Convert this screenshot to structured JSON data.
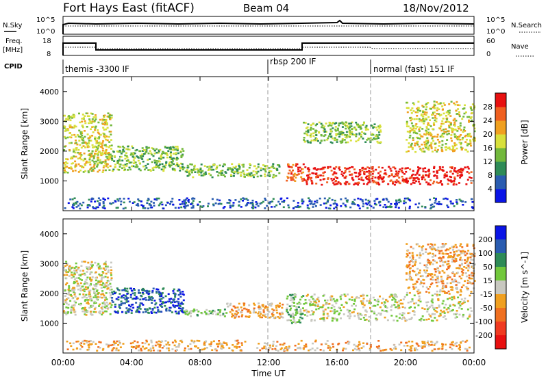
{
  "header": {
    "station": "Fort Hays East (fitACF)",
    "beam": "Beam 04",
    "date": "18/Nov/2012"
  },
  "nsky_panel": {
    "left_label": "N.Sky",
    "right_label": "N.Search",
    "left_ticks": [
      "10^5",
      "10^0"
    ],
    "right_ticks": [
      "10^5",
      "10^0"
    ]
  },
  "freq_panel": {
    "left_label_1": "Freq.",
    "left_label_2": "[MHz]",
    "right_label": "Nave",
    "left_ticks": [
      "18",
      "8"
    ],
    "right_ticks": [
      "60",
      "0"
    ]
  },
  "cpid_panel": {
    "label": "CPID",
    "modes": [
      {
        "name": "themis -3300 IF",
        "start_hour": 0
      },
      {
        "name": "rbsp 200 IF",
        "start_hour": 12
      },
      {
        "name": "normal (fast) 151 IF",
        "start_hour": 18
      }
    ]
  },
  "chart_data": [
    {
      "type": "heatmap",
      "title": "",
      "xlabel": "Time UT",
      "ylabel": "Slant Range [km]",
      "xlim": [
        0,
        24
      ],
      "ylim": [
        0,
        4500
      ],
      "x_ticks": [
        "00:00",
        "04:00",
        "08:00",
        "12:00",
        "16:00",
        "20:00",
        "00:00"
      ],
      "y_ticks": [
        "1000",
        "2000",
        "3000",
        "4000"
      ],
      "colorbar": {
        "label": "Power [dB]",
        "ticks": [
          "4",
          "8",
          "12",
          "16",
          "20",
          "24",
          "28"
        ],
        "colors": [
          "#0a14e6",
          "#2a5cb0",
          "#2e8b57",
          "#72b83c",
          "#d8e03c",
          "#f0a020",
          "#f06020",
          "#e81010"
        ]
      },
      "scatter_regions": [
        {
          "t0": 0.0,
          "t1": 2.8,
          "r0": 1300,
          "r1": 3300,
          "level": 4
        },
        {
          "t0": 2.8,
          "t1": 7.0,
          "r0": 1350,
          "r1": 2200,
          "level": 3
        },
        {
          "t0": 7.0,
          "t1": 12.6,
          "r0": 1150,
          "r1": 1600,
          "level": 3
        },
        {
          "t0": 13.0,
          "t1": 14.0,
          "r0": 1000,
          "r1": 1600,
          "level": 6
        },
        {
          "t0": 14.0,
          "t1": 23.8,
          "r0": 900,
          "r1": 1500,
          "level": 7
        },
        {
          "t0": 14.0,
          "t1": 18.5,
          "r0": 2300,
          "r1": 3000,
          "level": 3
        },
        {
          "t0": 20.0,
          "t1": 24.0,
          "r0": 2000,
          "r1": 3700,
          "level": 4
        },
        {
          "t0": 0.0,
          "t1": 24.0,
          "r0": 100,
          "r1": 450,
          "level": 1
        }
      ]
    },
    {
      "type": "heatmap",
      "title": "",
      "xlabel": "Time UT",
      "ylabel": "Slant Range [km]",
      "xlim": [
        0,
        24
      ],
      "ylim": [
        0,
        4500
      ],
      "x_ticks": [
        "00:00",
        "04:00",
        "08:00",
        "12:00",
        "16:00",
        "20:00",
        "00:00"
      ],
      "y_ticks": [
        "1000",
        "2000",
        "3000",
        "4000"
      ],
      "colorbar": {
        "label": "Velocity [m s^-1]",
        "ticks": [
          "200",
          "100",
          "50",
          "15",
          "-15",
          "-50",
          "-100",
          "-200"
        ],
        "colors": [
          "#0a14e6",
          "#2a5cb0",
          "#2e8b57",
          "#72c83c",
          "#c8c8c0",
          "#f0a020",
          "#f07020",
          "#f03a20",
          "#e81010"
        ]
      },
      "scatter_regions": [
        {
          "t0": 0.0,
          "t1": 2.8,
          "r0": 1300,
          "r1": 3100,
          "level": 4
        },
        {
          "t0": 2.8,
          "t1": 7.0,
          "r0": 1350,
          "r1": 2200,
          "level": 1
        },
        {
          "t0": 7.0,
          "t1": 9.5,
          "r0": 1250,
          "r1": 1500,
          "level": 3
        },
        {
          "t0": 9.5,
          "t1": 12.8,
          "r0": 1200,
          "r1": 1700,
          "level": 5
        },
        {
          "t0": 13.0,
          "t1": 14.0,
          "r0": 1000,
          "r1": 2000,
          "level": 3
        },
        {
          "t0": 14.0,
          "t1": 23.8,
          "r0": 1100,
          "r1": 2000,
          "level": 4
        },
        {
          "t0": 20.0,
          "t1": 24.0,
          "r0": 2000,
          "r1": 3700,
          "level": 5
        },
        {
          "t0": 0.0,
          "t1": 24.0,
          "r0": 100,
          "r1": 450,
          "level": 5
        }
      ]
    }
  ]
}
